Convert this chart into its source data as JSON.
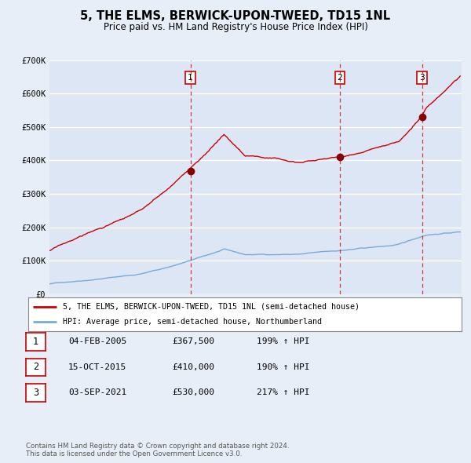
{
  "title": "5, THE ELMS, BERWICK-UPON-TWEED, TD15 1NL",
  "subtitle": "Price paid vs. HM Land Registry's House Price Index (HPI)",
  "bg_color": "#e8eef8",
  "plot_bg_color": "#dde6f5",
  "grid_color": "#ffffff",
  "sale_line_color": "#cc0000",
  "hpi_line_color": "#7aaad4",
  "ylim": [
    0,
    700000
  ],
  "yticks": [
    0,
    100000,
    200000,
    300000,
    400000,
    500000,
    600000,
    700000
  ],
  "ytick_labels": [
    "£0",
    "£100K",
    "£200K",
    "£300K",
    "£400K",
    "£500K",
    "£600K",
    "£700K"
  ],
  "sales": [
    {
      "date_num": 2005.09,
      "price": 367500,
      "label": "1"
    },
    {
      "date_num": 2015.79,
      "price": 410000,
      "label": "2"
    },
    {
      "date_num": 2021.67,
      "price": 530000,
      "label": "3"
    }
  ],
  "vlines": [
    {
      "x": 2005.09,
      "label": "1"
    },
    {
      "x": 2015.79,
      "label": "2"
    },
    {
      "x": 2021.67,
      "label": "3"
    }
  ],
  "legend_sale_label": "5, THE ELMS, BERWICK-UPON-TWEED, TD15 1NL (semi-detached house)",
  "legend_hpi_label": "HPI: Average price, semi-detached house, Northumberland",
  "table_rows": [
    {
      "num": "1",
      "date": "04-FEB-2005",
      "price": "£367,500",
      "hpi": "199% ↑ HPI"
    },
    {
      "num": "2",
      "date": "15-OCT-2015",
      "price": "£410,000",
      "hpi": "190% ↑ HPI"
    },
    {
      "num": "3",
      "date": "03-SEP-2021",
      "price": "£530,000",
      "hpi": "217% ↑ HPI"
    }
  ],
  "footer": "Contains HM Land Registry data © Crown copyright and database right 2024.\nThis data is licensed under the Open Government Licence v3.0.",
  "xmin": 1995.0,
  "xmax": 2024.5
}
